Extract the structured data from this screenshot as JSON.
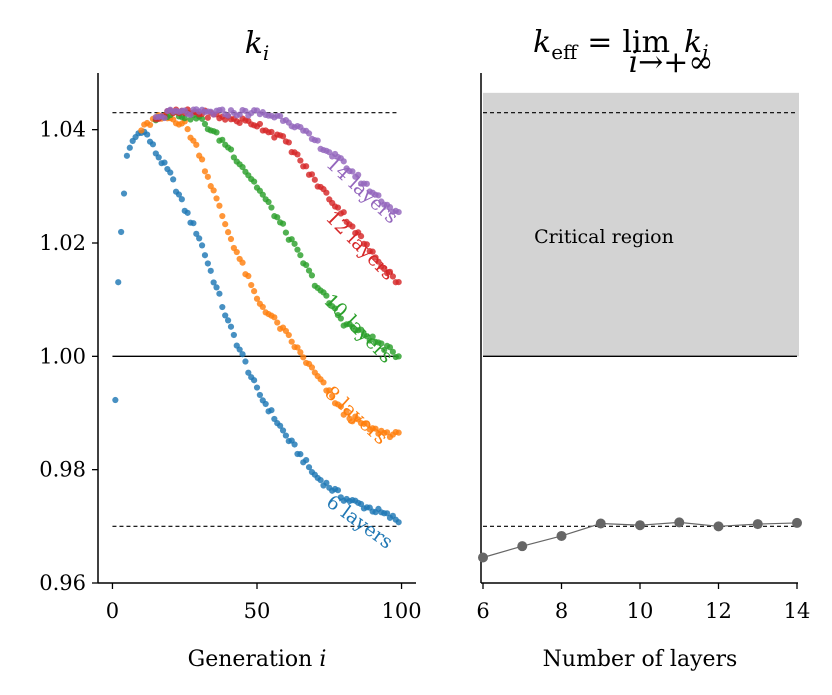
{
  "chart_data": [
    {
      "type": "scatter",
      "title": "k_i",
      "title_parts": {
        "base": "k",
        "sub": "i"
      },
      "xlabel": "Generation i",
      "xlabel_parts": {
        "text": "Generation",
        "var": "i"
      },
      "ylabel": "",
      "xlim": [
        -5,
        105
      ],
      "ylim": [
        0.96,
        1.05
      ],
      "xticks": [
        0,
        50,
        100
      ],
      "xtick_labels": [
        "0",
        "50",
        "100"
      ],
      "yticks": [
        0.96,
        0.98,
        1.0,
        1.02,
        1.04
      ],
      "ytick_labels": [
        "0.96",
        "0.98",
        "1.00",
        "1.02",
        "1.04"
      ],
      "reference_lines": [
        {
          "y": 1.043,
          "style": "dashed",
          "x_range": [
            0,
            99
          ]
        },
        {
          "y": 1.0,
          "style": "solid",
          "x_range": [
            0,
            99
          ]
        },
        {
          "y": 0.97,
          "style": "dashed",
          "x_range": [
            0,
            99
          ]
        }
      ],
      "series": [
        {
          "name": "6 layers",
          "label": "6 layers",
          "color": "#1f77b4",
          "key_points": [
            [
              1,
              0.992
            ],
            [
              2,
              1.013
            ],
            [
              3,
              1.022
            ],
            [
              4,
              1.029
            ],
            [
              5,
              1.035
            ],
            [
              7,
              1.038
            ],
            [
              10,
              1.04
            ],
            [
              12,
              1.039
            ],
            [
              15,
              1.036
            ],
            [
              20,
              1.032
            ],
            [
              25,
              1.026
            ],
            [
              30,
              1.021
            ],
            [
              40,
              1.006
            ],
            [
              50,
              0.994
            ],
            [
              60,
              0.986
            ],
            [
              70,
              0.979
            ],
            [
              80,
              0.975
            ],
            [
              90,
              0.973
            ],
            [
              99,
              0.971
            ]
          ]
        },
        {
          "name": "8 layers",
          "label": "8 layers",
          "color": "#ff7f0e",
          "key_points": [
            [
              10,
              1.04
            ],
            [
              15,
              1.042
            ],
            [
              20,
              1.042
            ],
            [
              25,
              1.041
            ],
            [
              30,
              1.036
            ],
            [
              40,
              1.022
            ],
            [
              50,
              1.01
            ],
            [
              60,
              1.004
            ],
            [
              70,
              0.997
            ],
            [
              80,
              0.99
            ],
            [
              90,
              0.987
            ],
            [
              99,
              0.986
            ]
          ]
        },
        {
          "name": "10 layers",
          "label": "10 layers",
          "color": "#2ca02c",
          "key_points": [
            [
              15,
              1.042
            ],
            [
              20,
              1.043
            ],
            [
              30,
              1.042
            ],
            [
              40,
              1.037
            ],
            [
              50,
              1.03
            ],
            [
              60,
              1.022
            ],
            [
              70,
              1.013
            ],
            [
              80,
              1.006
            ],
            [
              90,
              1.003
            ],
            [
              99,
              1.0
            ]
          ]
        },
        {
          "name": "12 layers",
          "label": "12 layers",
          "color": "#d62728",
          "key_points": [
            [
              15,
              1.042
            ],
            [
              20,
              1.043
            ],
            [
              30,
              1.043
            ],
            [
              40,
              1.042
            ],
            [
              50,
              1.041
            ],
            [
              60,
              1.038
            ],
            [
              70,
              1.031
            ],
            [
              80,
              1.025
            ],
            [
              90,
              1.018
            ],
            [
              99,
              1.013
            ]
          ]
        },
        {
          "name": "14 layers",
          "label": "14 layers",
          "color": "#9467bd",
          "key_points": [
            [
              15,
              1.042
            ],
            [
              20,
              1.043
            ],
            [
              30,
              1.043
            ],
            [
              40,
              1.043
            ],
            [
              50,
              1.043
            ],
            [
              60,
              1.042
            ],
            [
              70,
              1.038
            ],
            [
              80,
              1.034
            ],
            [
              90,
              1.029
            ],
            [
              99,
              1.025
            ]
          ]
        }
      ]
    },
    {
      "type": "line",
      "title": "k_eff = lim_{i→+∞} k_i",
      "title_parts": {
        "base": "k",
        "sub": "eff",
        "eq": "=",
        "lim": "lim",
        "lim_sub": "i→+∞",
        "tail": "k",
        "tail_sub": "i"
      },
      "xlabel": "Number of layers",
      "ylabel": "",
      "xlim": [
        6,
        14
      ],
      "ylim": [
        0.96,
        1.05
      ],
      "xticks": [
        6,
        8,
        10,
        12,
        14
      ],
      "xtick_labels": [
        "6",
        "8",
        "10",
        "12",
        "14"
      ],
      "shaded_region": {
        "label": "Critical region",
        "y_range": [
          1.0,
          1.0465
        ],
        "color": "#d3d3d3"
      },
      "reference_lines": [
        {
          "y": 1.043,
          "style": "dashed"
        },
        {
          "y": 1.0,
          "style": "solid"
        },
        {
          "y": 0.97,
          "style": "dashed"
        }
      ],
      "series": [
        {
          "name": "k_eff",
          "color": "#666666",
          "x": [
            6,
            7,
            8,
            9,
            10,
            11,
            12,
            13,
            14
          ],
          "values": [
            0.9645,
            0.9665,
            0.9683,
            0.9705,
            0.9702,
            0.9707,
            0.97,
            0.9704,
            0.9706
          ]
        }
      ]
    }
  ]
}
